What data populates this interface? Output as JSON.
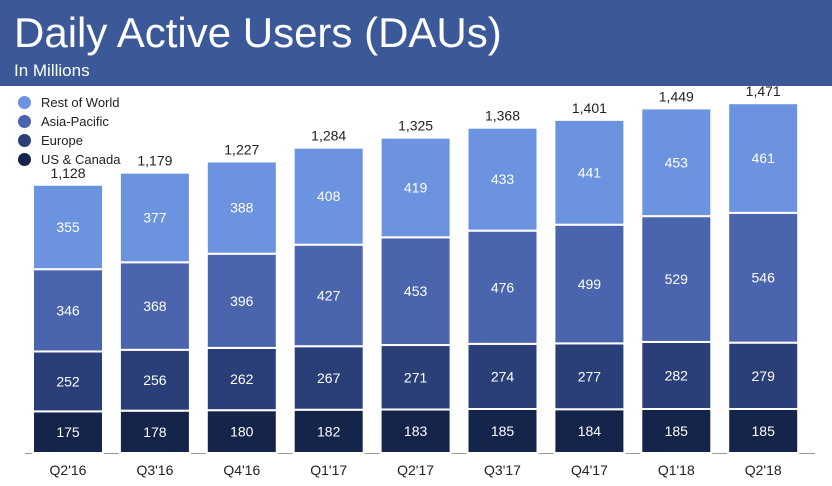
{
  "header": {
    "title": "Daily Active Users (DAUs)",
    "subtitle": "In Millions"
  },
  "colors": {
    "header_bg": "#3b5998",
    "us_canada": "#14244a",
    "europe": "#2a3f78",
    "asia_pacific": "#4a65ae",
    "rest_of_world": "#6b93e0",
    "bar_border": "#ffffff"
  },
  "legend": [
    {
      "label": "Rest of World",
      "color": "#6b93e0"
    },
    {
      "label": "Asia-Pacific",
      "color": "#4a65ae"
    },
    {
      "label": "Europe",
      "color": "#2a3f78"
    },
    {
      "label": "US & Canada",
      "color": "#14244a"
    }
  ],
  "chart_data": {
    "type": "bar",
    "stacked": true,
    "title": "Daily Active Users (DAUs)",
    "subtitle": "In Millions",
    "categories": [
      "Q2'16",
      "Q3'16",
      "Q4'16",
      "Q1'17",
      "Q2'17",
      "Q3'17",
      "Q4'17",
      "Q1'18",
      "Q2'18"
    ],
    "series": [
      {
        "name": "US & Canada",
        "color": "#14244a",
        "values": [
          175,
          178,
          180,
          182,
          183,
          185,
          184,
          185,
          185
        ]
      },
      {
        "name": "Europe",
        "color": "#2a3f78",
        "values": [
          252,
          256,
          262,
          267,
          271,
          274,
          277,
          282,
          279
        ]
      },
      {
        "name": "Asia-Pacific",
        "color": "#4a65ae",
        "values": [
          346,
          368,
          396,
          427,
          453,
          476,
          499,
          529,
          546
        ]
      },
      {
        "name": "Rest of World",
        "color": "#6b93e0",
        "values": [
          355,
          377,
          388,
          408,
          419,
          433,
          441,
          453,
          461
        ]
      }
    ],
    "totals": [
      "1,128",
      "1,179",
      "1,227",
      "1,284",
      "1,325",
      "1,368",
      "1,401",
      "1,449",
      "1,471"
    ],
    "ylim": [
      0,
      1520
    ],
    "grid": false,
    "legend_position": "top-left"
  }
}
